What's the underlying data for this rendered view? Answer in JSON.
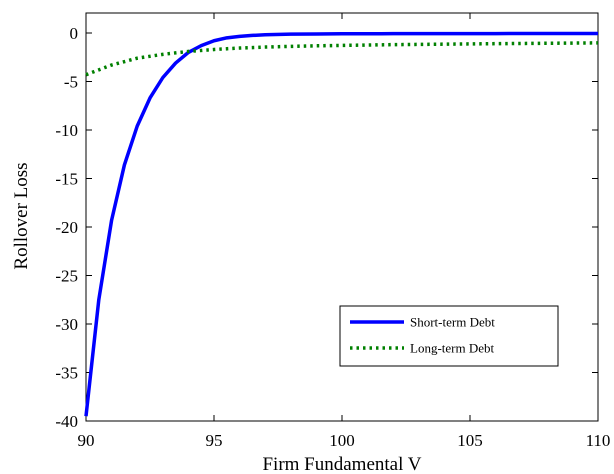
{
  "chart_data": {
    "type": "line",
    "title": "",
    "xlabel": "Firm Fundamental V",
    "ylabel": "Rollover Loss",
    "xlim": [
      90,
      110
    ],
    "ylim": [
      -40,
      2
    ],
    "xticks": [
      90,
      95,
      100,
      105,
      110
    ],
    "yticks": [
      0,
      -5,
      -10,
      -15,
      -20,
      -25,
      -30,
      -35,
      -40
    ],
    "grid": false,
    "legend_position": "bottom-right",
    "series": [
      {
        "name": "Short-term Debt",
        "color": "#0000ff",
        "style": "solid",
        "x": [
          90,
          90.5,
          91,
          91.5,
          92,
          92.5,
          93,
          93.5,
          94,
          94.5,
          95,
          95.5,
          96,
          96.5,
          97,
          98,
          99,
          100,
          102,
          104,
          106,
          108,
          110
        ],
        "y": [
          -39.5,
          -27.5,
          -19.3,
          -13.6,
          -9.6,
          -6.7,
          -4.6,
          -3.1,
          -2.0,
          -1.3,
          -0.8,
          -0.5,
          -0.35,
          -0.25,
          -0.18,
          -0.12,
          -0.1,
          -0.08,
          -0.07,
          -0.06,
          -0.06,
          -0.05,
          -0.05
        ]
      },
      {
        "name": "Long-term Debt",
        "color": "#008000",
        "style": "dotted",
        "x": [
          90,
          91,
          92,
          93,
          94,
          95,
          96,
          97,
          98,
          99,
          100,
          102,
          104,
          106,
          108,
          110
        ],
        "y": [
          -4.3,
          -3.3,
          -2.6,
          -2.2,
          -1.9,
          -1.7,
          -1.55,
          -1.45,
          -1.38,
          -1.32,
          -1.28,
          -1.2,
          -1.15,
          -1.1,
          -1.06,
          -1.02
        ]
      }
    ]
  }
}
